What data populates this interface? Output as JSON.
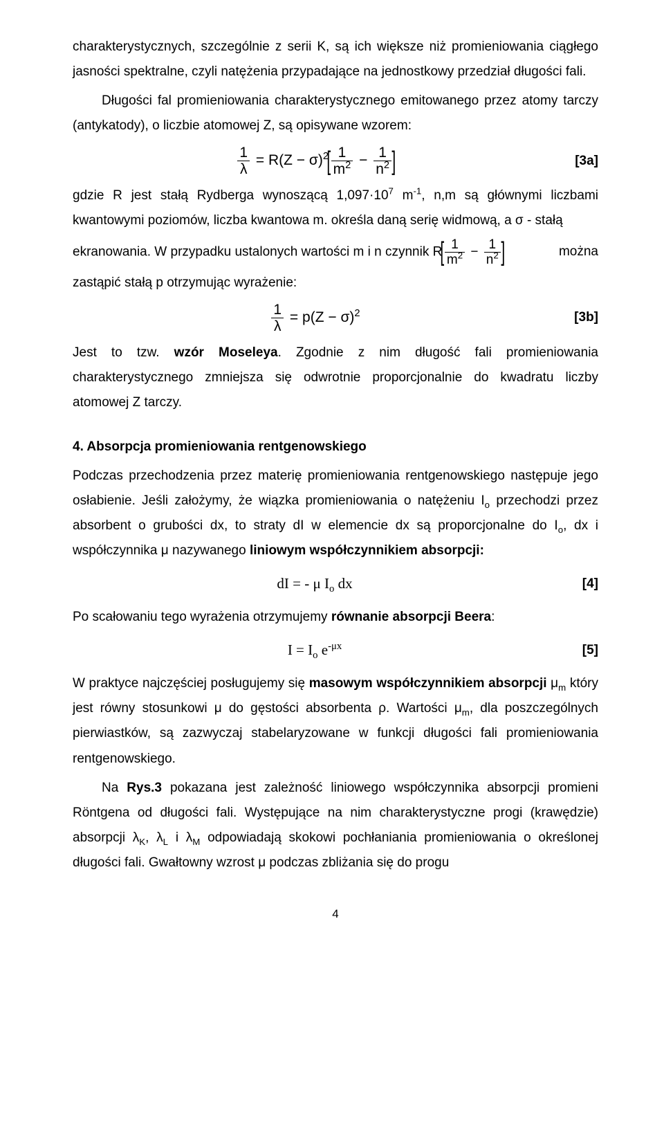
{
  "p1": "charakterystycznych, szczególnie z serii K, są ich większe niż promieniowania ciągłego jasności spektralne, czyli natężenia przypadające na jednostkowy przedział długości fali.",
  "p2": "Długości fal promieniowania charakterystycznego emitowanego przez atomy tarczy (antykatody), o liczbie atomowej Z, są opisywane wzorem:",
  "eq3a": {
    "lhs_num": "1",
    "lhs_den": "λ",
    "rhs_prefix": " = R(Z − σ)",
    "term1_num": "1",
    "term1_den_base": "m",
    "term2_num": "1",
    "term2_den_base": "n",
    "label": "[3a]"
  },
  "p3_a": "gdzie R jest stałą Rydberga wynoszącą 1,097·10",
  "p3_sup": "7",
  "p3_b": " m",
  "p3_b_sup": "-1",
  "p3_c": ", n,m są głównymi liczbami kwantowymi poziomów, liczba kwantowa m. określa daną serię widmową, a σ - stałą",
  "p3_d": "ekranowania. W przypadku ustalonych wartości m i n czynnik ",
  "p3_R": "R",
  "p3_e": " można",
  "p4": "zastąpić stałą  p otrzymując wyrażenie:",
  "eq3b": {
    "lhs_num": "1",
    "lhs_den": "λ",
    "rhs": " = p(Z − σ)",
    "label": "[3b]"
  },
  "p5_a": "Jest to tzw. ",
  "p5_bold": "wzór Moseleya",
  "p5_b": ". Zgodnie z nim długość fali promieniowania charakterystycznego zmniejsza się odwrotnie proporcjonalnie do kwadratu liczby atomowej Z tarczy.",
  "h4": "4. Absorpcja promieniowania rentgenowskiego",
  "p6_a": "Podczas przechodzenia przez materię promieniowania rentgenowskiego następuje jego osłabienie. Jeśli założymy, że wiązka promieniowania o natężeniu I",
  "p6_a_sub": "o",
  "p6_b": " przechodzi przez absorbent o grubości dx, to straty dI w elemencie dx są proporcjonalne do I",
  "p6_b_sub": "o",
  "p6_c": ", dx i współczynnika μ nazywanego ",
  "p6_bold": "liniowym współczynnikiem absorpcji:",
  "eq4": {
    "text_a": "dI = - μ I",
    "sub": "o",
    "text_b": " dx",
    "label": "[4]"
  },
  "p7": "Po scałowaniu tego wyrażenia otrzymujemy ",
  "p7_bold": "równanie absorpcji Beera",
  "p7_end": ":",
  "eq5": {
    "text_a": "I = I",
    "sub": "o",
    "text_b": " e",
    "sup": "-μx",
    "label": "[5]"
  },
  "p8_a": "W praktyce najczęściej posługujemy się ",
  "p8_bold": "masowym współczynnikiem absorpcji",
  "p8_b": " μ",
  "p8_b_sub": "m",
  "p8_c": " który jest równy stosunkowi μ do gęstości absorbenta ρ. Wartości μ",
  "p8_c_sub": "m",
  "p8_d": ", dla poszczególnych pierwiastków, są zazwyczaj stabelaryzowane w funkcji długości fali promieniowania rentgenowskiego.",
  "p9_a": "Na ",
  "p9_bold": "Rys.3",
  "p9_b": " pokazana jest zależność liniowego współczynnika absorpcji promieni Röntgena od długości fali. Występujące na nim charakterystyczne progi (krawędzie) absorpcji λ",
  "p9_b_sub1": "K",
  "p9_c": ", λ",
  "p9_c_sub": "L",
  "p9_d": " i λ",
  "p9_d_sub": "M",
  "p9_e": " odpowiadają skokowi pochłaniania promieniowania o określonej długości fali. Gwałtowny wzrost μ podczas zbliżania się do progu",
  "pagenum": "4"
}
